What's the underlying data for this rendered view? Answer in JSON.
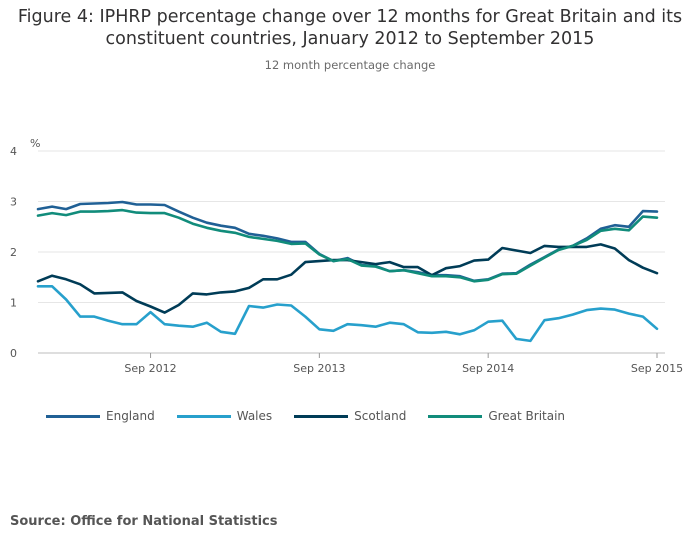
{
  "title_line1": "Figure 4: IPHRP percentage change over 12 months for Great Britain and its",
  "title_line2": "constituent countries, January 2012 to September 2015",
  "subtitle": "12 month percentage change",
  "source": "Source: Office for National Statistics",
  "chart_data": {
    "type": "line",
    "title": "Figure 4: IPHRP percentage change over 12 months for Great Britain and its constituent countries, January 2012 to September 2015",
    "subtitle": "12 month percentage change",
    "ylabel": "%",
    "xlabel": "",
    "ylim": [
      0,
      4
    ],
    "yticks": [
      "0",
      "1",
      "2",
      "3",
      "4"
    ],
    "grid": true,
    "legend_position": "bottom",
    "xtick_labels": [
      {
        "index": 8,
        "label": "Sep 2012"
      },
      {
        "index": 20,
        "label": "Sep 2013"
      },
      {
        "index": 32,
        "label": "Sep 2014"
      },
      {
        "index": 44,
        "label": "Sep 2015"
      }
    ],
    "x": [
      "Jan 2012",
      "Feb 2012",
      "Mar 2012",
      "Apr 2012",
      "May 2012",
      "Jun 2012",
      "Jul 2012",
      "Aug 2012",
      "Sep 2012",
      "Oct 2012",
      "Nov 2012",
      "Dec 2012",
      "Jan 2013",
      "Feb 2013",
      "Mar 2013",
      "Apr 2013",
      "May 2013",
      "Jun 2013",
      "Jul 2013",
      "Aug 2013",
      "Sep 2013",
      "Oct 2013",
      "Nov 2013",
      "Dec 2013",
      "Jan 2014",
      "Feb 2014",
      "Mar 2014",
      "Apr 2014",
      "May 2014",
      "Jun 2014",
      "Jul 2014",
      "Aug 2014",
      "Sep 2014",
      "Oct 2014",
      "Nov 2014",
      "Dec 2014",
      "Jan 2015",
      "Feb 2015",
      "Mar 2015",
      "Apr 2015",
      "May 2015",
      "Jun 2015",
      "Jul 2015",
      "Aug 2015",
      "Sep 2015"
    ],
    "series": [
      {
        "name": "England",
        "color": "#206095",
        "values": [
          2.85,
          2.9,
          2.85,
          2.95,
          2.96,
          2.97,
          2.99,
          2.94,
          2.94,
          2.93,
          2.8,
          2.68,
          2.58,
          2.52,
          2.48,
          2.36,
          2.32,
          2.27,
          2.2,
          2.2,
          1.96,
          1.82,
          1.88,
          1.74,
          1.72,
          1.62,
          1.64,
          1.6,
          1.54,
          1.54,
          1.52,
          1.43,
          1.46,
          1.57,
          1.58,
          1.75,
          1.9,
          2.05,
          2.12,
          2.27,
          2.46,
          2.53,
          2.5,
          2.81,
          2.8
        ]
      },
      {
        "name": "Wales",
        "color": "#27a0cc",
        "values": [
          1.32,
          1.32,
          1.06,
          0.72,
          0.72,
          0.64,
          0.57,
          0.57,
          0.81,
          0.57,
          0.54,
          0.52,
          0.6,
          0.42,
          0.38,
          0.93,
          0.9,
          0.96,
          0.94,
          0.72,
          0.47,
          0.44,
          0.57,
          0.55,
          0.52,
          0.6,
          0.57,
          0.41,
          0.4,
          0.42,
          0.37,
          0.45,
          0.62,
          0.64,
          0.28,
          0.24,
          0.65,
          0.69,
          0.76,
          0.85,
          0.88,
          0.86,
          0.78,
          0.72,
          0.48
        ]
      },
      {
        "name": "Scotland",
        "color": "#003c57",
        "values": [
          1.42,
          1.53,
          1.46,
          1.36,
          1.18,
          1.19,
          1.2,
          1.03,
          0.92,
          0.8,
          0.95,
          1.18,
          1.16,
          1.2,
          1.22,
          1.29,
          1.46,
          1.46,
          1.55,
          1.8,
          1.82,
          1.84,
          1.84,
          1.8,
          1.76,
          1.8,
          1.7,
          1.7,
          1.54,
          1.68,
          1.72,
          1.83,
          1.85,
          2.08,
          2.03,
          1.98,
          2.12,
          2.1,
          2.1,
          2.1,
          2.15,
          2.07,
          1.84,
          1.69,
          1.58
        ]
      },
      {
        "name": "Great Britain",
        "color": "#118c7b",
        "values": [
          2.72,
          2.77,
          2.73,
          2.8,
          2.8,
          2.81,
          2.83,
          2.78,
          2.77,
          2.77,
          2.68,
          2.56,
          2.48,
          2.42,
          2.38,
          2.3,
          2.26,
          2.22,
          2.16,
          2.17,
          1.95,
          1.82,
          1.86,
          1.73,
          1.71,
          1.62,
          1.64,
          1.58,
          1.52,
          1.52,
          1.5,
          1.42,
          1.45,
          1.56,
          1.57,
          1.73,
          1.89,
          2.04,
          2.12,
          2.24,
          2.42,
          2.46,
          2.43,
          2.7,
          2.68
        ]
      }
    ]
  }
}
